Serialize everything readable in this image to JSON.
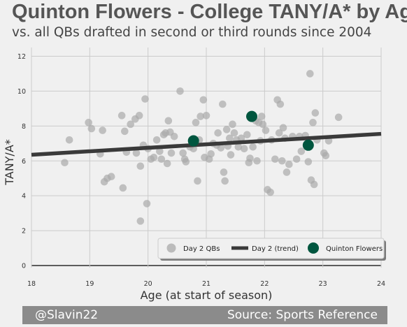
{
  "chart_data": {
    "type": "scatter",
    "title": "Quinton Flowers - College TANY/A* by Age",
    "subtitle": "vs. all QBs drafted in second or third rounds since 2004",
    "xlabel": "Age (at start of season)",
    "ylabel": "TANY/A*",
    "xlim": [
      18,
      24
    ],
    "ylim": [
      -0.6,
      12.5
    ],
    "xticks": [
      18,
      19,
      20,
      21,
      22,
      23,
      24
    ],
    "yticks": [
      0,
      2,
      4,
      6,
      8,
      10,
      12
    ],
    "grid": true,
    "legend_position": "bottom-right",
    "colors": {
      "day2": "#aaaaaa",
      "trend": "#3a3a3a",
      "flowers": "#00563f",
      "background": "#f0f0f0"
    },
    "series": [
      {
        "name": "Day 2 QBs",
        "kind": "scatter",
        "points": [
          [
            18.57,
            5.9
          ],
          [
            18.65,
            7.2
          ],
          [
            18.98,
            8.2
          ],
          [
            19.03,
            7.85
          ],
          [
            19.18,
            6.4
          ],
          [
            19.22,
            7.75
          ],
          [
            19.25,
            4.8
          ],
          [
            19.3,
            5.0
          ],
          [
            19.37,
            5.1
          ],
          [
            19.55,
            8.6
          ],
          [
            19.57,
            4.45
          ],
          [
            19.6,
            7.7
          ],
          [
            19.63,
            6.5
          ],
          [
            19.7,
            8.1
          ],
          [
            19.78,
            8.4
          ],
          [
            19.8,
            6.45
          ],
          [
            19.85,
            8.6
          ],
          [
            19.87,
            5.7
          ],
          [
            19.87,
            2.55
          ],
          [
            19.92,
            6.9
          ],
          [
            19.95,
            9.55
          ],
          [
            19.98,
            3.55
          ],
          [
            20.0,
            6.7
          ],
          [
            20.05,
            6.1
          ],
          [
            20.1,
            6.2
          ],
          [
            20.15,
            7.2
          ],
          [
            20.2,
            6.55
          ],
          [
            20.23,
            6.1
          ],
          [
            20.27,
            7.5
          ],
          [
            20.3,
            7.6
          ],
          [
            20.33,
            5.85
          ],
          [
            20.35,
            8.3
          ],
          [
            20.38,
            7.65
          ],
          [
            20.4,
            6.45
          ],
          [
            20.45,
            7.4
          ],
          [
            20.55,
            10.0
          ],
          [
            20.6,
            6.45
          ],
          [
            20.63,
            6.1
          ],
          [
            20.65,
            5.95
          ],
          [
            20.72,
            6.8
          ],
          [
            20.78,
            6.7
          ],
          [
            20.82,
            8.2
          ],
          [
            20.85,
            4.85
          ],
          [
            20.88,
            7.2
          ],
          [
            20.9,
            8.55
          ],
          [
            20.95,
            9.5
          ],
          [
            20.97,
            6.2
          ],
          [
            21.0,
            8.6
          ],
          [
            21.05,
            6.1
          ],
          [
            21.08,
            6.4
          ],
          [
            21.12,
            7.0
          ],
          [
            21.18,
            6.9
          ],
          [
            21.2,
            7.6
          ],
          [
            21.25,
            6.75
          ],
          [
            21.28,
            9.25
          ],
          [
            21.3,
            5.35
          ],
          [
            21.32,
            4.85
          ],
          [
            21.35,
            7.8
          ],
          [
            21.37,
            6.85
          ],
          [
            21.4,
            7.3
          ],
          [
            21.42,
            6.35
          ],
          [
            21.45,
            8.1
          ],
          [
            21.48,
            7.6
          ],
          [
            21.52,
            7.2
          ],
          [
            21.55,
            6.8
          ],
          [
            21.6,
            7.3
          ],
          [
            21.65,
            6.7
          ],
          [
            21.7,
            7.5
          ],
          [
            21.73,
            5.9
          ],
          [
            21.75,
            6.15
          ],
          [
            21.8,
            6.8
          ],
          [
            21.85,
            8.3
          ],
          [
            21.87,
            6.0
          ],
          [
            21.9,
            8.2
          ],
          [
            21.93,
            7.15
          ],
          [
            21.95,
            8.55
          ],
          [
            21.97,
            8.1
          ],
          [
            22.02,
            7.75
          ],
          [
            22.05,
            4.35
          ],
          [
            22.1,
            4.2
          ],
          [
            22.12,
            7.2
          ],
          [
            22.18,
            6.1
          ],
          [
            22.22,
            9.5
          ],
          [
            22.25,
            7.6
          ],
          [
            22.27,
            9.25
          ],
          [
            22.3,
            6.0
          ],
          [
            22.32,
            7.9
          ],
          [
            22.35,
            7.3
          ],
          [
            22.38,
            5.35
          ],
          [
            22.42,
            5.8
          ],
          [
            22.48,
            7.4
          ],
          [
            22.55,
            6.1
          ],
          [
            22.6,
            7.4
          ],
          [
            22.63,
            6.55
          ],
          [
            22.7,
            7.45
          ],
          [
            22.75,
            5.95
          ],
          [
            22.78,
            11.0
          ],
          [
            22.8,
            4.9
          ],
          [
            22.83,
            8.2
          ],
          [
            22.85,
            4.65
          ],
          [
            22.87,
            8.75
          ],
          [
            22.9,
            7.2
          ],
          [
            23.02,
            6.45
          ],
          [
            23.05,
            6.3
          ],
          [
            23.1,
            7.15
          ],
          [
            23.27,
            8.5
          ]
        ]
      },
      {
        "name": "Day 2 (trend)",
        "kind": "line",
        "points": [
          [
            18,
            6.35
          ],
          [
            24,
            7.55
          ]
        ]
      },
      {
        "name": "Quinton Flowers",
        "kind": "scatter",
        "points": [
          [
            20.78,
            7.15
          ],
          [
            21.78,
            8.55
          ],
          [
            22.75,
            6.9
          ]
        ]
      }
    ],
    "legend": [
      "Day 2 QBs",
      "Day 2 (trend)",
      "Quinton Flowers"
    ],
    "footer_left": "@Slavin22",
    "footer_right": "Source: Sports Reference"
  }
}
